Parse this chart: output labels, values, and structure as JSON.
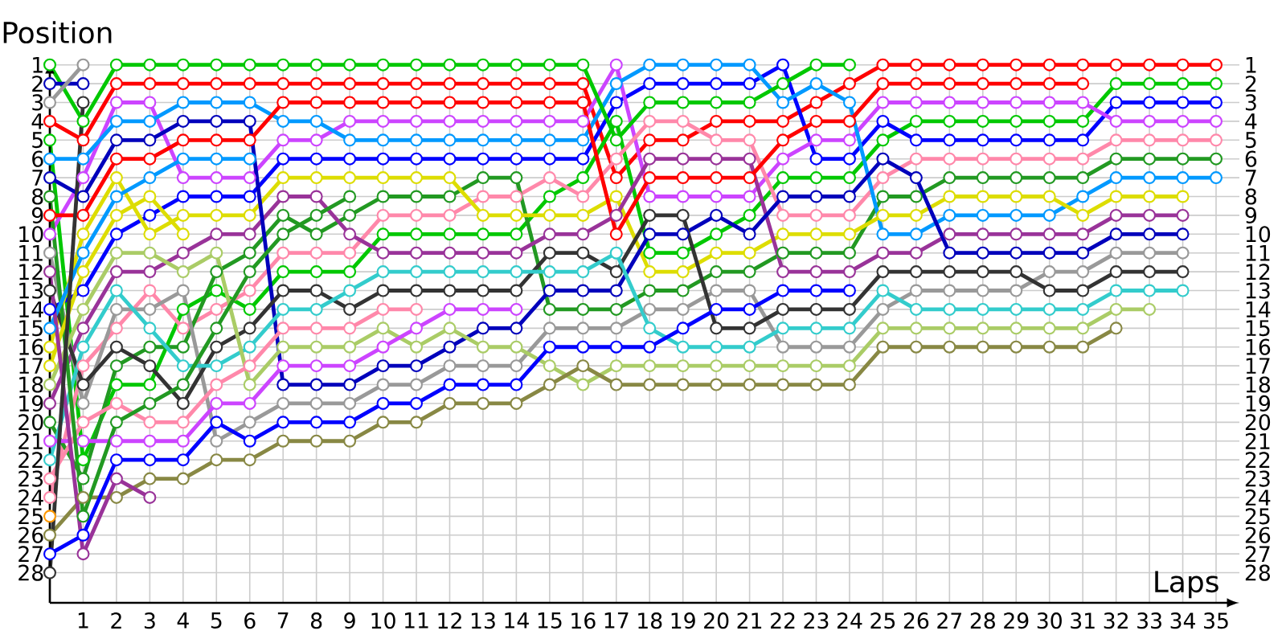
{
  "chart_data": {
    "type": "line",
    "xlabel": "Laps",
    "ylabel": "Position",
    "x": [
      0,
      1,
      2,
      3,
      4,
      5,
      6,
      7,
      8,
      9,
      10,
      11,
      12,
      13,
      14,
      15,
      16,
      17,
      18,
      19,
      20,
      21,
      22,
      23,
      24,
      25,
      26,
      27,
      28,
      29,
      30,
      31,
      32,
      33,
      34,
      35
    ],
    "xlim": [
      0,
      35.7
    ],
    "xticks": [
      1,
      2,
      3,
      4,
      5,
      6,
      7,
      8,
      9,
      10,
      11,
      12,
      13,
      14,
      15,
      16,
      17,
      18,
      19,
      20,
      21,
      22,
      23,
      24,
      25,
      26,
      27,
      28,
      29,
      30,
      31,
      32,
      33,
      34,
      35
    ],
    "ylim": [
      29.6,
      0.8
    ],
    "yticks": [
      1,
      2,
      3,
      4,
      5,
      6,
      7,
      8,
      9,
      10,
      11,
      12,
      13,
      14,
      15,
      16,
      17,
      18,
      19,
      20,
      21,
      22,
      23,
      24,
      25,
      26,
      27,
      28
    ],
    "y2lim": [
      29.6,
      0.8
    ],
    "y2ticks": [
      1,
      2,
      3,
      4,
      5,
      6,
      7,
      8,
      9,
      10,
      11,
      12,
      13,
      14,
      15,
      16,
      17,
      18,
      19,
      20,
      21,
      22,
      23,
      24,
      25,
      26,
      27,
      28
    ],
    "grid": true,
    "marker": "circle",
    "line_style": "solid",
    "series": [
      {
        "color": "#ff0000",
        "values": [
          4,
          5,
          2,
          2,
          2,
          2,
          2,
          2,
          2,
          2,
          2,
          2,
          2,
          2,
          2,
          2,
          2,
          7,
          5,
          5,
          4,
          4,
          4,
          3,
          2,
          1,
          1,
          1,
          1,
          1,
          1,
          1,
          1,
          1,
          1,
          1
        ]
      },
      {
        "color": "#00c800",
        "values": [
          5,
          22,
          18,
          18,
          14,
          13,
          14,
          12,
          12,
          12,
          10,
          10,
          10,
          10,
          10,
          8,
          7,
          4,
          11,
          11,
          10,
          9,
          7,
          7,
          7,
          5,
          4,
          4,
          4,
          4,
          4,
          4,
          2,
          2,
          2,
          2
        ]
      },
      {
        "color": "#0000ff",
        "values": [
          14,
          13,
          10,
          9,
          8,
          8,
          8,
          6,
          6,
          6,
          6,
          6,
          6,
          6,
          6,
          6,
          6,
          3,
          2,
          2,
          2,
          2,
          1,
          6,
          6,
          4,
          5,
          5,
          5,
          5,
          5,
          5,
          3,
          3,
          3,
          3
        ]
      },
      {
        "color": "#cc44ff",
        "values": [
          10,
          7,
          3,
          3,
          7,
          7,
          7,
          5,
          5,
          4,
          4,
          4,
          4,
          4,
          4,
          4,
          4,
          1,
          8,
          8,
          8,
          8,
          6,
          5,
          5,
          3,
          3,
          3,
          3,
          3,
          3,
          3,
          4,
          4,
          4,
          4
        ]
      },
      {
        "color": "#ff88aa",
        "values": [
          24,
          17,
          15,
          13,
          15,
          14,
          13,
          11,
          11,
          11,
          9,
          9,
          9,
          8,
          8,
          7,
          8,
          6,
          4,
          4,
          5,
          5,
          9,
          9,
          9,
          7,
          6,
          6,
          6,
          6,
          6,
          6,
          5,
          5,
          5,
          5
        ]
      },
      {
        "color": "#229922",
        "values": [
          20,
          23,
          17,
          16,
          16,
          12,
          11,
          9,
          10,
          9,
          8,
          8,
          8,
          7,
          7,
          14,
          14,
          14,
          13,
          13,
          12,
          12,
          11,
          11,
          11,
          8,
          8,
          7,
          7,
          7,
          7,
          7,
          6,
          6,
          6,
          6
        ]
      },
      {
        "color": "#0099ff",
        "values": [
          6,
          6,
          4,
          4,
          3,
          3,
          3,
          4,
          4,
          5,
          5,
          5,
          5,
          5,
          5,
          5,
          5,
          2,
          1,
          1,
          1,
          1,
          3,
          2,
          3,
          10,
          10,
          9,
          9,
          9,
          9,
          8,
          7,
          7,
          7,
          7
        ]
      },
      {
        "color": "#dddd00",
        "values": [
          16,
          10,
          7,
          10,
          9,
          9,
          9,
          7,
          7,
          7,
          7,
          7,
          7,
          9,
          9,
          9,
          9,
          8,
          12,
          12,
          11,
          11,
          10,
          10,
          10,
          9,
          9,
          8,
          8,
          8,
          8,
          9,
          8,
          8,
          8,
          null
        ]
      },
      {
        "color": "#993399",
        "values": [
          19,
          15,
          12,
          12,
          11,
          10,
          10,
          8,
          8,
          10,
          11,
          11,
          11,
          11,
          11,
          10,
          10,
          9,
          6,
          6,
          6,
          6,
          12,
          12,
          12,
          11,
          11,
          10,
          10,
          10,
          10,
          10,
          9,
          9,
          9,
          null
        ]
      },
      {
        "color": "#0000bb",
        "values": [
          7,
          8,
          5,
          5,
          4,
          4,
          4,
          18,
          18,
          18,
          17,
          17,
          16,
          15,
          15,
          13,
          13,
          13,
          10,
          10,
          9,
          10,
          8,
          8,
          8,
          6,
          7,
          11,
          11,
          11,
          11,
          11,
          10,
          10,
          10,
          null
        ]
      },
      {
        "color": "#999999",
        "values": [
          11,
          19,
          14,
          14,
          13,
          21,
          20,
          19,
          19,
          19,
          18,
          18,
          17,
          17,
          17,
          15,
          15,
          15,
          14,
          14,
          13,
          13,
          16,
          16,
          16,
          14,
          13,
          13,
          13,
          13,
          12,
          12,
          11,
          11,
          11,
          null
        ]
      },
      {
        "color": "#333333",
        "values": [
          13,
          18,
          16,
          17,
          19,
          16,
          15,
          13,
          13,
          14,
          13,
          13,
          13,
          13,
          13,
          11,
          11,
          12,
          9,
          9,
          15,
          15,
          14,
          14,
          14,
          12,
          12,
          12,
          12,
          12,
          13,
          13,
          12,
          12,
          12,
          null
        ]
      },
      {
        "color": "#33cccc",
        "values": [
          22,
          16,
          13,
          15,
          17,
          17,
          16,
          14,
          14,
          13,
          12,
          12,
          12,
          12,
          12,
          12,
          12,
          11,
          15,
          16,
          16,
          16,
          15,
          15,
          15,
          13,
          14,
          14,
          14,
          14,
          14,
          14,
          13,
          13,
          13,
          null
        ]
      },
      {
        "color": "#aacc66",
        "values": [
          18,
          14,
          11,
          11,
          12,
          11,
          18,
          16,
          16,
          16,
          15,
          16,
          15,
          16,
          16,
          17,
          18,
          17,
          17,
          17,
          17,
          17,
          17,
          17,
          17,
          15,
          15,
          15,
          15,
          15,
          15,
          15,
          14,
          14,
          null,
          null
        ]
      },
      {
        "color": "#888844",
        "values": [
          26,
          24,
          24,
          23,
          23,
          22,
          22,
          21,
          21,
          21,
          20,
          20,
          19,
          19,
          19,
          18,
          17,
          18,
          18,
          18,
          18,
          18,
          18,
          18,
          18,
          16,
          16,
          16,
          16,
          16,
          16,
          16,
          15,
          null,
          null,
          null
        ]
      },
      {
        "color": "#ff0000",
        "values": [
          9,
          9,
          6,
          6,
          5,
          5,
          5,
          3,
          3,
          3,
          3,
          3,
          3,
          3,
          3,
          3,
          3,
          10,
          7,
          7,
          7,
          7,
          5,
          4,
          4,
          2,
          2,
          2,
          2,
          2,
          2,
          2,
          null,
          null,
          null,
          null
        ]
      },
      {
        "color": "#00c800",
        "values": [
          1,
          4,
          1,
          1,
          1,
          1,
          1,
          1,
          1,
          1,
          1,
          1,
          1,
          1,
          1,
          1,
          1,
          5,
          3,
          3,
          3,
          3,
          2,
          1,
          1,
          null,
          null,
          null,
          null,
          null,
          null,
          null,
          null,
          null,
          null,
          null
        ]
      },
      {
        "color": "#0000ff",
        "values": [
          27,
          26,
          22,
          22,
          22,
          20,
          21,
          20,
          20,
          20,
          19,
          19,
          18,
          18,
          18,
          16,
          16,
          16,
          16,
          15,
          14,
          14,
          13,
          13,
          13,
          null,
          null,
          null,
          null,
          null,
          null,
          null,
          null,
          null,
          null,
          null
        ]
      },
      {
        "color": "#cc44ff",
        "values": [
          21,
          21,
          21,
          21,
          21,
          19,
          19,
          17,
          17,
          17,
          16,
          15,
          14,
          14,
          14,
          null,
          null,
          null,
          null,
          null,
          null,
          null,
          null,
          null,
          null,
          null,
          null,
          null,
          null,
          null,
          null,
          null,
          null,
          null,
          null,
          null
        ]
      },
      {
        "color": "#ff88aa",
        "values": [
          23,
          20,
          19,
          20,
          20,
          18,
          17,
          15,
          15,
          15,
          14,
          14,
          null,
          null,
          null,
          null,
          null,
          null,
          null,
          null,
          null,
          null,
          null,
          null,
          null,
          null,
          null,
          null,
          null,
          null,
          null,
          null,
          null,
          null,
          null,
          null
        ]
      },
      {
        "color": "#229922",
        "values": [
          8,
          25,
          20,
          19,
          18,
          15,
          12,
          10,
          9,
          8,
          null,
          null,
          null,
          null,
          null,
          null,
          null,
          null,
          null,
          null,
          null,
          null,
          null,
          null,
          null,
          null,
          null,
          null,
          null,
          null,
          null,
          null,
          null,
          null,
          null,
          null
        ]
      },
      {
        "color": "#0099ff",
        "values": [
          15,
          11,
          8,
          7,
          6,
          6,
          6,
          null,
          null,
          null,
          null,
          null,
          null,
          null,
          null,
          null,
          null,
          null,
          null,
          null,
          null,
          null,
          null,
          null,
          null,
          null,
          null,
          null,
          null,
          null,
          null,
          null,
          null,
          null,
          null,
          null
        ]
      },
      {
        "color": "#dddd00",
        "values": [
          17,
          12,
          9,
          8,
          10,
          null,
          null,
          null,
          null,
          null,
          null,
          null,
          null,
          null,
          null,
          null,
          null,
          null,
          null,
          null,
          null,
          null,
          null,
          null,
          null,
          null,
          null,
          null,
          null,
          null,
          null,
          null,
          null,
          null,
          null,
          null
        ]
      },
      {
        "color": "#993399",
        "values": [
          12,
          27,
          23,
          24,
          null,
          null,
          null,
          null,
          null,
          null,
          null,
          null,
          null,
          null,
          null,
          null,
          null,
          null,
          null,
          null,
          null,
          null,
          null,
          null,
          null,
          null,
          null,
          null,
          null,
          null,
          null,
          null,
          null,
          null,
          null,
          null
        ]
      },
      {
        "color": "#0000bb",
        "values": [
          2,
          2,
          null,
          null,
          null,
          null,
          null,
          null,
          null,
          null,
          null,
          null,
          null,
          null,
          null,
          null,
          null,
          null,
          null,
          null,
          null,
          null,
          null,
          null,
          null,
          null,
          null,
          null,
          null,
          null,
          null,
          null,
          null,
          null,
          null,
          null
        ]
      },
      {
        "color": "#999999",
        "values": [
          3,
          1,
          null,
          null,
          null,
          null,
          null,
          null,
          null,
          null,
          null,
          null,
          null,
          null,
          null,
          null,
          null,
          null,
          null,
          null,
          null,
          null,
          null,
          null,
          null,
          null,
          null,
          null,
          null,
          null,
          null,
          null,
          null,
          null,
          null,
          null
        ]
      },
      {
        "color": "#333333",
        "values": [
          28,
          3,
          null,
          null,
          null,
          null,
          null,
          null,
          null,
          null,
          null,
          null,
          null,
          null,
          null,
          null,
          null,
          null,
          null,
          null,
          null,
          null,
          null,
          null,
          null,
          null,
          null,
          null,
          null,
          null,
          null,
          null,
          null,
          null,
          null,
          null
        ]
      },
      {
        "color": "#ff9900",
        "values": [
          25,
          null,
          null,
          null,
          null,
          null,
          null,
          null,
          null,
          null,
          null,
          null,
          null,
          null,
          null,
          null,
          null,
          null,
          null,
          null,
          null,
          null,
          null,
          null,
          null,
          null,
          null,
          null,
          null,
          null,
          null,
          null,
          null,
          null,
          null,
          null
        ]
      }
    ]
  }
}
